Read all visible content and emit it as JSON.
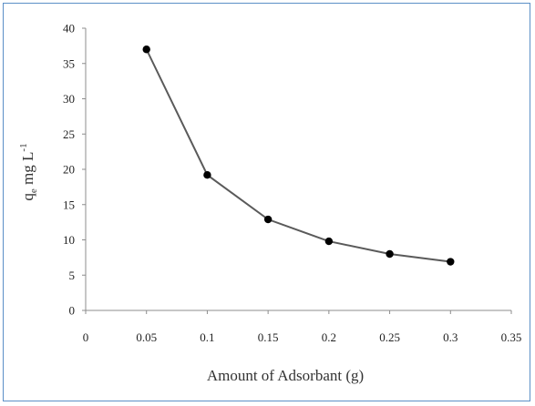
{
  "chart_data": {
    "type": "line",
    "title": "",
    "xlabel": "Amount of Adsorbant (g)",
    "ylabel": {
      "main": "q",
      "sub": "e",
      "unit": " mg  L",
      "sup": "-1"
    },
    "x": [
      0.05,
      0.1,
      0.15,
      0.2,
      0.25,
      0.3
    ],
    "series": [
      {
        "values": [
          37.0,
          19.2,
          12.9,
          9.8,
          8.0,
          6.9
        ]
      }
    ],
    "xlim": [
      0,
      0.35
    ],
    "ylim": [
      0,
      40
    ],
    "x_ticks": [
      "0",
      "0.05",
      "0.1",
      "0.15",
      "0.2",
      "0.25",
      "0.3",
      "0.35"
    ],
    "y_ticks": [
      "0",
      "5",
      "10",
      "15",
      "20",
      "25",
      "30",
      "35",
      "40"
    ],
    "grid": false,
    "legend": "none",
    "line_color": "#5a5a5a",
    "marker_color": "#000000",
    "axis_color": "#8c8c8c",
    "frame_color": "#5b8fc7"
  }
}
